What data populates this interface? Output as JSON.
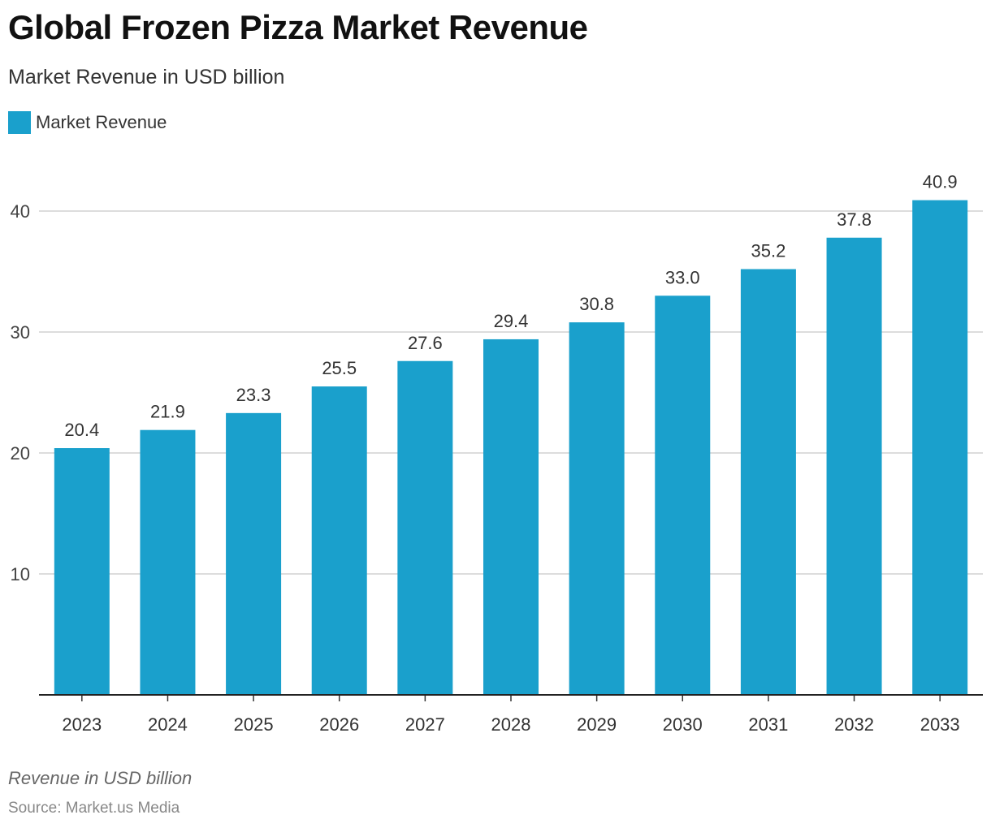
{
  "chart_data": {
    "type": "bar",
    "title": "Global Frozen Pizza Market Revenue",
    "subtitle": "Market Revenue in USD billion",
    "categories": [
      "2023",
      "2024",
      "2025",
      "2026",
      "2027",
      "2028",
      "2029",
      "2030",
      "2031",
      "2032",
      "2033"
    ],
    "series": [
      {
        "name": "Market Revenue",
        "color": "#1aa0cc",
        "values": [
          20.4,
          21.9,
          23.3,
          25.5,
          27.6,
          29.4,
          30.8,
          33.0,
          35.2,
          37.8,
          40.9
        ],
        "labels": [
          "20.4",
          "21.9",
          "23.3",
          "25.5",
          "27.6",
          "29.4",
          "30.8",
          "33.0",
          "35.2",
          "37.8",
          "40.9"
        ]
      }
    ],
    "yticks": [
      "10",
      "20",
      "30",
      "40"
    ],
    "ylim": [
      0,
      43
    ],
    "grid": true,
    "legend": "top-left",
    "footnote": "Revenue in USD billion",
    "source": "Source: Market.us Media"
  }
}
